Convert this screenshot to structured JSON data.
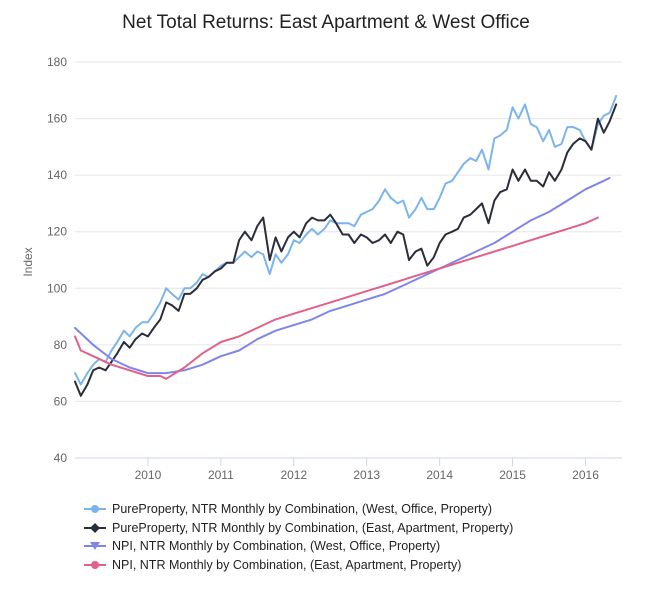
{
  "chart_data": {
    "type": "line",
    "title": "Net Total Returns: East Apartment & West Office",
    "ylabel": "Index",
    "xlabel": "",
    "xlim": [
      2009.0,
      2016.5
    ],
    "ylim": [
      40,
      180
    ],
    "yticks": [
      40,
      60,
      80,
      100,
      120,
      140,
      160,
      180
    ],
    "xticks": [
      "2010",
      "2011",
      "2012",
      "2013",
      "2014",
      "2015",
      "2016"
    ],
    "grid": true,
    "legend_position": "bottom",
    "series": [
      {
        "name": "PureProperty, NTR Monthly by Combination, (West, Office, Property)",
        "color": "#7cb5ec",
        "marker": "circle",
        "points": [
          [
            2009.0,
            70
          ],
          [
            2009.08,
            66
          ],
          [
            2009.17,
            70
          ],
          [
            2009.25,
            73
          ],
          [
            2009.33,
            75
          ],
          [
            2009.42,
            74
          ],
          [
            2009.5,
            78
          ],
          [
            2009.58,
            81
          ],
          [
            2009.67,
            85
          ],
          [
            2009.75,
            83
          ],
          [
            2009.83,
            86
          ],
          [
            2009.92,
            88
          ],
          [
            2010.0,
            88
          ],
          [
            2010.08,
            91
          ],
          [
            2010.17,
            95
          ],
          [
            2010.25,
            100
          ],
          [
            2010.33,
            98
          ],
          [
            2010.42,
            96
          ],
          [
            2010.5,
            100
          ],
          [
            2010.58,
            100
          ],
          [
            2010.67,
            102
          ],
          [
            2010.75,
            105
          ],
          [
            2010.83,
            104
          ],
          [
            2010.92,
            106
          ],
          [
            2011.0,
            108
          ],
          [
            2011.08,
            109
          ],
          [
            2011.17,
            109
          ],
          [
            2011.25,
            111
          ],
          [
            2011.33,
            113
          ],
          [
            2011.42,
            111
          ],
          [
            2011.5,
            113
          ],
          [
            2011.58,
            112
          ],
          [
            2011.67,
            105
          ],
          [
            2011.75,
            112
          ],
          [
            2011.83,
            109
          ],
          [
            2011.92,
            112
          ],
          [
            2012.0,
            117
          ],
          [
            2012.08,
            116
          ],
          [
            2012.17,
            119
          ],
          [
            2012.25,
            121
          ],
          [
            2012.33,
            119
          ],
          [
            2012.42,
            121
          ],
          [
            2012.5,
            124
          ],
          [
            2012.58,
            123
          ],
          [
            2012.67,
            123
          ],
          [
            2012.75,
            123
          ],
          [
            2012.83,
            122
          ],
          [
            2012.92,
            126
          ],
          [
            2013.0,
            127
          ],
          [
            2013.08,
            128
          ],
          [
            2013.17,
            131
          ],
          [
            2013.25,
            135
          ],
          [
            2013.33,
            132
          ],
          [
            2013.42,
            130
          ],
          [
            2013.5,
            131
          ],
          [
            2013.58,
            125
          ],
          [
            2013.67,
            128
          ],
          [
            2013.75,
            132
          ],
          [
            2013.83,
            128
          ],
          [
            2013.92,
            128
          ],
          [
            2014.0,
            132
          ],
          [
            2014.08,
            137
          ],
          [
            2014.17,
            138
          ],
          [
            2014.25,
            141
          ],
          [
            2014.33,
            144
          ],
          [
            2014.42,
            146
          ],
          [
            2014.5,
            145
          ],
          [
            2014.58,
            149
          ],
          [
            2014.67,
            142
          ],
          [
            2014.75,
            153
          ],
          [
            2014.83,
            154
          ],
          [
            2014.92,
            156
          ],
          [
            2015.0,
            164
          ],
          [
            2015.08,
            160
          ],
          [
            2015.17,
            165
          ],
          [
            2015.25,
            158
          ],
          [
            2015.33,
            157
          ],
          [
            2015.42,
            152
          ],
          [
            2015.5,
            156
          ],
          [
            2015.58,
            150
          ],
          [
            2015.67,
            151
          ],
          [
            2015.75,
            157
          ],
          [
            2015.83,
            157
          ],
          [
            2015.92,
            156
          ],
          [
            2016.0,
            152
          ],
          [
            2016.08,
            149
          ],
          [
            2016.17,
            158
          ],
          [
            2016.25,
            161
          ],
          [
            2016.33,
            162
          ],
          [
            2016.42,
            168
          ]
        ]
      },
      {
        "name": "PureProperty, NTR Monthly by Combination, (East, Apartment, Property)",
        "color": "#2b2d3a",
        "marker": "diamond",
        "points": [
          [
            2009.0,
            67
          ],
          [
            2009.08,
            62
          ],
          [
            2009.17,
            66
          ],
          [
            2009.25,
            71
          ],
          [
            2009.33,
            72
          ],
          [
            2009.42,
            71
          ],
          [
            2009.5,
            74
          ],
          [
            2009.58,
            77
          ],
          [
            2009.67,
            81
          ],
          [
            2009.75,
            79
          ],
          [
            2009.83,
            82
          ],
          [
            2009.92,
            84
          ],
          [
            2010.0,
            83
          ],
          [
            2010.08,
            86
          ],
          [
            2010.17,
            89
          ],
          [
            2010.25,
            95
          ],
          [
            2010.33,
            94
          ],
          [
            2010.42,
            92
          ],
          [
            2010.5,
            98
          ],
          [
            2010.58,
            98
          ],
          [
            2010.67,
            100
          ],
          [
            2010.75,
            103
          ],
          [
            2010.83,
            104
          ],
          [
            2010.92,
            106
          ],
          [
            2011.0,
            107
          ],
          [
            2011.08,
            109
          ],
          [
            2011.17,
            109
          ],
          [
            2011.25,
            117
          ],
          [
            2011.33,
            120
          ],
          [
            2011.42,
            117
          ],
          [
            2011.5,
            122
          ],
          [
            2011.58,
            125
          ],
          [
            2011.67,
            110
          ],
          [
            2011.75,
            118
          ],
          [
            2011.83,
            113
          ],
          [
            2011.92,
            118
          ],
          [
            2012.0,
            120
          ],
          [
            2012.08,
            118
          ],
          [
            2012.17,
            123
          ],
          [
            2012.25,
            125
          ],
          [
            2012.33,
            124
          ],
          [
            2012.42,
            124
          ],
          [
            2012.5,
            126
          ],
          [
            2012.58,
            123
          ],
          [
            2012.67,
            119
          ],
          [
            2012.75,
            119
          ],
          [
            2012.83,
            116
          ],
          [
            2012.92,
            119
          ],
          [
            2013.0,
            118
          ],
          [
            2013.08,
            116
          ],
          [
            2013.17,
            117
          ],
          [
            2013.25,
            119
          ],
          [
            2013.33,
            116
          ],
          [
            2013.42,
            120
          ],
          [
            2013.5,
            119
          ],
          [
            2013.58,
            110
          ],
          [
            2013.67,
            113
          ],
          [
            2013.75,
            114
          ],
          [
            2013.83,
            108
          ],
          [
            2013.92,
            111
          ],
          [
            2014.0,
            116
          ],
          [
            2014.08,
            119
          ],
          [
            2014.17,
            120
          ],
          [
            2014.25,
            121
          ],
          [
            2014.33,
            125
          ],
          [
            2014.42,
            126
          ],
          [
            2014.5,
            128
          ],
          [
            2014.58,
            130
          ],
          [
            2014.67,
            123
          ],
          [
            2014.75,
            131
          ],
          [
            2014.83,
            134
          ],
          [
            2014.92,
            135
          ],
          [
            2015.0,
            142
          ],
          [
            2015.08,
            138
          ],
          [
            2015.17,
            142
          ],
          [
            2015.25,
            138
          ],
          [
            2015.33,
            138
          ],
          [
            2015.42,
            136
          ],
          [
            2015.5,
            141
          ],
          [
            2015.58,
            138
          ],
          [
            2015.67,
            142
          ],
          [
            2015.75,
            148
          ],
          [
            2015.83,
            151
          ],
          [
            2015.92,
            153
          ],
          [
            2016.0,
            152
          ],
          [
            2016.08,
            149
          ],
          [
            2016.17,
            160
          ],
          [
            2016.25,
            155
          ],
          [
            2016.33,
            159
          ],
          [
            2016.42,
            165
          ]
        ]
      },
      {
        "name": "NPI, NTR Monthly by Combination, (West, Office, Property)",
        "color": "#8085e9",
        "marker": "triangle-down",
        "points": [
          [
            2009.0,
            86
          ],
          [
            2009.25,
            80
          ],
          [
            2009.5,
            75
          ],
          [
            2009.75,
            72
          ],
          [
            2010.0,
            70
          ],
          [
            2010.25,
            70
          ],
          [
            2010.5,
            71
          ],
          [
            2010.75,
            73
          ],
          [
            2011.0,
            76
          ],
          [
            2011.25,
            78
          ],
          [
            2011.5,
            82
          ],
          [
            2011.75,
            85
          ],
          [
            2012.0,
            87
          ],
          [
            2012.25,
            89
          ],
          [
            2012.5,
            92
          ],
          [
            2012.75,
            94
          ],
          [
            2013.0,
            96
          ],
          [
            2013.25,
            98
          ],
          [
            2013.5,
            101
          ],
          [
            2013.75,
            104
          ],
          [
            2014.0,
            107
          ],
          [
            2014.25,
            110
          ],
          [
            2014.5,
            113
          ],
          [
            2014.75,
            116
          ],
          [
            2015.0,
            120
          ],
          [
            2015.25,
            124
          ],
          [
            2015.5,
            127
          ],
          [
            2015.75,
            131
          ],
          [
            2016.0,
            135
          ],
          [
            2016.25,
            138
          ],
          [
            2016.33,
            139
          ]
        ]
      },
      {
        "name": "NPI, NTR Monthly by Combination, (East, Apartment, Property)",
        "color": "#e0628a",
        "marker": "circle",
        "points": [
          [
            2009.0,
            83
          ],
          [
            2009.08,
            78
          ],
          [
            2009.25,
            76
          ],
          [
            2009.5,
            73
          ],
          [
            2009.75,
            71
          ],
          [
            2010.0,
            69
          ],
          [
            2010.17,
            69
          ],
          [
            2010.25,
            68
          ],
          [
            2010.5,
            72
          ],
          [
            2010.75,
            77
          ],
          [
            2011.0,
            81
          ],
          [
            2011.25,
            83
          ],
          [
            2011.5,
            86
          ],
          [
            2011.75,
            89
          ],
          [
            2012.0,
            91
          ],
          [
            2012.25,
            93
          ],
          [
            2012.5,
            95
          ],
          [
            2012.75,
            97
          ],
          [
            2013.0,
            99
          ],
          [
            2013.25,
            101
          ],
          [
            2013.5,
            103
          ],
          [
            2013.75,
            105
          ],
          [
            2014.0,
            107
          ],
          [
            2014.25,
            109
          ],
          [
            2014.5,
            111
          ],
          [
            2014.75,
            113
          ],
          [
            2015.0,
            115
          ],
          [
            2015.25,
            117
          ],
          [
            2015.5,
            119
          ],
          [
            2015.75,
            121
          ],
          [
            2016.0,
            123
          ],
          [
            2016.17,
            125
          ]
        ]
      }
    ]
  }
}
